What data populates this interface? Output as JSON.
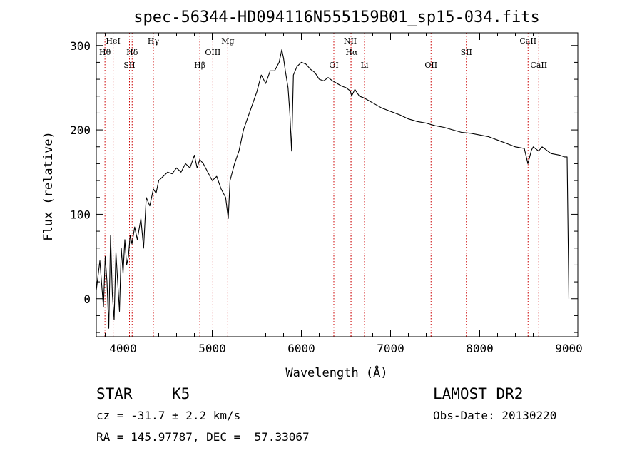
{
  "chart_data": {
    "type": "line",
    "title": "spec-56344-HD094116N555159B01_sp15-034.fits",
    "xlabel": "Wavelength (Å)",
    "ylabel": "Flux (relative)",
    "xlim": [
      3700,
      9100
    ],
    "ylim": [
      -45,
      315
    ],
    "xticks": [
      4000,
      5000,
      6000,
      7000,
      8000,
      9000
    ],
    "yticks": [
      0,
      100,
      200,
      300
    ],
    "line_color": "#000000",
    "marker_color": "#cc0000",
    "series": [
      {
        "x": [
          3700,
          3740,
          3780,
          3800,
          3820,
          3840,
          3860,
          3880,
          3900,
          3920,
          3940,
          3960,
          3980,
          4000,
          4020,
          4040,
          4060,
          4080,
          4100,
          4130,
          4160,
          4200,
          4230,
          4260,
          4300,
          4340,
          4370,
          4400,
          4450,
          4500,
          4550,
          4600,
          4650,
          4700,
          4750,
          4800,
          4830,
          4860,
          4900,
          4950,
          5000,
          5050,
          5100,
          5150,
          5180,
          5200,
          5250,
          5300,
          5350,
          5400,
          5450,
          5500,
          5550,
          5600,
          5650,
          5700,
          5750,
          5780,
          5800,
          5820,
          5850,
          5870,
          5890,
          5910,
          5950,
          6000,
          6050,
          6100,
          6150,
          6200,
          6250,
          6300,
          6350,
          6400,
          6450,
          6500,
          6550,
          6563,
          6600,
          6650,
          6700,
          6800,
          6900,
          7000,
          7100,
          7200,
          7300,
          7400,
          7500,
          7600,
          7700,
          7800,
          7900,
          8000,
          8100,
          8200,
          8300,
          8400,
          8500,
          8540,
          8580,
          8600,
          8660,
          8700,
          8800,
          8900,
          8950,
          8980,
          9000
        ],
        "y": [
          10,
          45,
          -10,
          50,
          20,
          -35,
          75,
          5,
          -25,
          55,
          20,
          -15,
          60,
          30,
          70,
          40,
          50,
          75,
          65,
          85,
          70,
          95,
          60,
          120,
          110,
          130,
          125,
          140,
          145,
          150,
          148,
          155,
          150,
          160,
          155,
          170,
          155,
          165,
          160,
          150,
          140,
          145,
          130,
          120,
          95,
          140,
          160,
          175,
          200,
          215,
          230,
          245,
          265,
          255,
          270,
          270,
          280,
          295,
          285,
          270,
          250,
          220,
          175,
          265,
          275,
          280,
          278,
          272,
          268,
          260,
          258,
          262,
          258,
          255,
          252,
          250,
          246,
          240,
          248,
          240,
          238,
          232,
          226,
          222,
          218,
          213,
          210,
          208,
          205,
          203,
          200,
          197,
          196,
          194,
          192,
          188,
          184,
          180,
          178,
          160,
          176,
          180,
          175,
          180,
          172,
          170,
          168,
          168,
          0
        ]
      }
    ],
    "lines": [
      {
        "x": 3797,
        "label": "Hθ",
        "row": 2
      },
      {
        "x": 3889,
        "label": "HeI",
        "row": 1
      },
      {
        "x": 4072,
        "label": "SII",
        "row": 3
      },
      {
        "x": 4102,
        "label": "Hδ",
        "row": 2
      },
      {
        "x": 4340,
        "label": "Hγ",
        "row": 1
      },
      {
        "x": 4861,
        "label": "Hβ",
        "row": 3
      },
      {
        "x": 5007,
        "label": "OIII",
        "row": 2
      },
      {
        "x": 5175,
        "label": "Mg",
        "row": 1
      },
      {
        "x": 6364,
        "label": "OI",
        "row": 3
      },
      {
        "x": 6548,
        "label": "NII",
        "row": 1
      },
      {
        "x": 6563,
        "label": "Hα",
        "row": 2
      },
      {
        "x": 6708,
        "label": "Li",
        "row": 3
      },
      {
        "x": 7454,
        "label": "OII",
        "row": 3
      },
      {
        "x": 7850,
        "label": "SII",
        "row": 2
      },
      {
        "x": 8542,
        "label": "CaII",
        "row": 1
      },
      {
        "x": 8662,
        "label": "CaII",
        "row": 3
      }
    ]
  },
  "info": {
    "class_label": "STAR",
    "subclass": "K5",
    "survey": "LAMOST DR2",
    "redshift_text": "cz = -31.7 ± 2.2 km/s",
    "obs_date_text": "Obs-Date: 20130220",
    "coords_text": "RA = 145.97787, DEC =  57.33067"
  }
}
